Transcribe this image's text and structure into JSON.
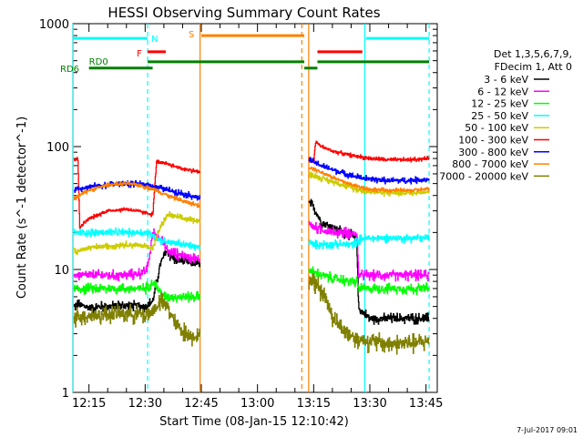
{
  "chart_data": {
    "type": "line",
    "title": "HESSI Observing Summary Count Rates",
    "xlabel": "Start Time (08-Jan-15 12:10:42)",
    "ylabel": "Count Rate (s^-1 detector^-1)",
    "yscale": "log",
    "ylim": [
      1,
      1000
    ],
    "xlim": [
      "12:10:42",
      "13:48:00"
    ],
    "x_ticks": [
      "12:15",
      "12:30",
      "12:45",
      "13:00",
      "13:15",
      "13:30",
      "13:45"
    ],
    "y_ticks": [
      "1",
      "10",
      "100",
      "1000"
    ],
    "legend_header": [
      "Det 1,3,5,6,7,9,",
      "FDecim 1, Att 0"
    ],
    "footer_date": "7-Jul-2017 09:01",
    "flags": [
      {
        "label": "N",
        "color": "#00ffff",
        "level": 760,
        "segments": [
          [
            "12:10:42",
            "12:30:40"
          ],
          [
            "13:29:00",
            "13:45:50"
          ]
        ]
      },
      {
        "label": "F",
        "color": "#ff0000",
        "level": 590,
        "segments": [
          [
            "12:30:40",
            "12:35:30"
          ],
          [
            "13:16:00",
            "13:28:00"
          ]
        ]
      },
      {
        "label": "S",
        "color": "#ff8000",
        "level": 800,
        "segments": [
          [
            "12:45:00",
            "13:12:30"
          ]
        ]
      },
      {
        "label": "RD0",
        "color": "#008000",
        "level": 490,
        "segments": [
          [
            "12:10:42",
            "12:10:46"
          ],
          [
            "12:30:40",
            "13:12:30"
          ],
          [
            "13:16:00",
            "13:45:50"
          ]
        ]
      },
      {
        "label": "RD6",
        "color": "#008000",
        "level": 435,
        "segments": [
          [
            "12:15:00",
            "12:32:00"
          ],
          [
            "13:12:30",
            "13:16:00"
          ]
        ]
      }
    ],
    "vlines": [
      {
        "x": "12:10:45",
        "color": "#00ffff",
        "style": "solid"
      },
      {
        "x": "12:30:40",
        "color": "#00ffff",
        "style": "dashed"
      },
      {
        "x": "12:44:40",
        "color": "#ff8000",
        "style": "solid"
      },
      {
        "x": "13:11:50",
        "color": "#ff8000",
        "style": "dashed"
      },
      {
        "x": "13:13:40",
        "color": "#ff8000",
        "style": "solid"
      },
      {
        "x": "13:28:40",
        "color": "#00ffff",
        "style": "solid"
      },
      {
        "x": "13:45:50",
        "color": "#00ffff",
        "style": "dashed"
      }
    ],
    "intervals": [
      [
        "12:11:00",
        "12:44:40"
      ],
      [
        "13:13:40",
        "13:45:50"
      ]
    ],
    "series": [
      {
        "name": "3 - 6 keV",
        "color": "#000000",
        "noise": 0.05,
        "points": [
          [
            "12:11:00",
            5
          ],
          [
            "12:12:00",
            5.2
          ],
          [
            "12:15:00",
            4.9
          ],
          [
            "12:20:00",
            5
          ],
          [
            "12:25:00",
            5.1
          ],
          [
            "12:30:00",
            5
          ],
          [
            "12:32:00",
            5.5
          ],
          [
            "12:34:00",
            11
          ],
          [
            "12:35:30",
            14
          ],
          [
            "12:38:00",
            12
          ],
          [
            "12:44:40",
            11
          ],
          [
            "13:13:40",
            35
          ],
          [
            "13:15:00",
            32
          ],
          [
            "13:17:00",
            24
          ],
          [
            "13:20:00",
            22
          ],
          [
            "13:23:00",
            20
          ],
          [
            "13:25:00",
            19
          ],
          [
            "13:26:30",
            17
          ],
          [
            "13:27:00",
            4.8
          ],
          [
            "13:30:00",
            4
          ],
          [
            "13:40:00",
            4
          ],
          [
            "13:45:50",
            4
          ]
        ]
      },
      {
        "name": "6 - 12 keV",
        "color": "#ff00ff",
        "noise": 0.05,
        "points": [
          [
            "12:11:00",
            9
          ],
          [
            "12:15:00",
            9
          ],
          [
            "12:20:00",
            9
          ],
          [
            "12:25:00",
            9
          ],
          [
            "12:30:00",
            9.5
          ],
          [
            "12:31:00",
            12
          ],
          [
            "12:32:00",
            20
          ],
          [
            "12:34:00",
            18
          ],
          [
            "12:36:00",
            14
          ],
          [
            "12:40:00",
            13
          ],
          [
            "12:44:40",
            12
          ],
          [
            "13:13:40",
            24
          ],
          [
            "13:15:00",
            22
          ],
          [
            "13:20:00",
            20
          ],
          [
            "13:25:00",
            20
          ],
          [
            "13:26:30",
            19
          ],
          [
            "13:27:00",
            9
          ],
          [
            "13:35:00",
            9
          ],
          [
            "13:45:50",
            9
          ]
        ]
      },
      {
        "name": "12 - 25 keV",
        "color": "#00ff00",
        "noise": 0.05,
        "points": [
          [
            "12:11:00",
            7
          ],
          [
            "12:15:00",
            7
          ],
          [
            "12:20:00",
            7
          ],
          [
            "12:25:00",
            7
          ],
          [
            "12:30:00",
            7
          ],
          [
            "12:32:00",
            8
          ],
          [
            "12:35:00",
            6
          ],
          [
            "12:40:00",
            6
          ],
          [
            "12:44:40",
            6
          ],
          [
            "13:13:40",
            10
          ],
          [
            "13:15:00",
            9.5
          ],
          [
            "13:17:00",
            9
          ],
          [
            "13:20:00",
            8.5
          ],
          [
            "13:25:00",
            8
          ],
          [
            "13:26:30",
            8
          ],
          [
            "13:27:00",
            7
          ],
          [
            "13:35:00",
            7
          ],
          [
            "13:45:50",
            7
          ]
        ]
      },
      {
        "name": "25 - 50 keV",
        "color": "#00ffff",
        "noise": 0.04,
        "points": [
          [
            "12:11:00",
            20
          ],
          [
            "12:15:00",
            20
          ],
          [
            "12:20:00",
            20
          ],
          [
            "12:25:00",
            20
          ],
          [
            "12:30:00",
            20
          ],
          [
            "12:32:00",
            19
          ],
          [
            "12:33:00",
            18
          ],
          [
            "12:35:00",
            17
          ],
          [
            "12:40:00",
            16
          ],
          [
            "12:44:40",
            15
          ],
          [
            "13:13:40",
            17
          ],
          [
            "13:15:00",
            16
          ],
          [
            "13:20:00",
            16
          ],
          [
            "13:25:00",
            16
          ],
          [
            "13:28:00",
            18
          ],
          [
            "13:35:00",
            18
          ],
          [
            "13:45:50",
            18
          ]
        ]
      },
      {
        "name": "50 - 100 keV",
        "color": "#cccc00",
        "noise": 0.03,
        "points": [
          [
            "12:11:00",
            14
          ],
          [
            "12:15:00",
            15
          ],
          [
            "12:20:00",
            15.5
          ],
          [
            "12:25:00",
            16
          ],
          [
            "12:30:00",
            15.5
          ],
          [
            "12:32:00",
            15
          ],
          [
            "12:34:00",
            22
          ],
          [
            "12:36:00",
            28
          ],
          [
            "12:40:00",
            26
          ],
          [
            "12:44:40",
            25
          ],
          [
            "13:13:40",
            60
          ],
          [
            "13:15:00",
            58
          ],
          [
            "13:18:00",
            54
          ],
          [
            "13:22:00",
            50
          ],
          [
            "13:25:00",
            46
          ],
          [
            "13:30:00",
            43
          ],
          [
            "13:35:00",
            42
          ],
          [
            "13:40:00",
            42
          ],
          [
            "13:45:50",
            43
          ]
        ]
      },
      {
        "name": "100 - 300 keV",
        "color": "#ff0000",
        "noise": 0.02,
        "points": [
          [
            "12:11:00",
            80
          ],
          [
            "12:12:00",
            78
          ],
          [
            "12:12:30",
            22
          ],
          [
            "12:15:00",
            26
          ],
          [
            "12:20:00",
            30
          ],
          [
            "12:25:00",
            31
          ],
          [
            "12:30:00",
            29
          ],
          [
            "12:32:00",
            28
          ],
          [
            "12:33:00",
            75
          ],
          [
            "12:36:00",
            72
          ],
          [
            "12:40:00",
            66
          ],
          [
            "12:44:40",
            62
          ],
          [
            "13:13:40",
            80
          ],
          [
            "13:15:00",
            75
          ],
          [
            "13:15:30",
            110
          ],
          [
            "13:17:00",
            100
          ],
          [
            "13:20:00",
            92
          ],
          [
            "13:25:00",
            85
          ],
          [
            "13:30:00",
            80
          ],
          [
            "13:35:00",
            78
          ],
          [
            "13:40:00",
            78
          ],
          [
            "13:45:50",
            80
          ]
        ]
      },
      {
        "name": "300 - 800 keV",
        "color": "#0000ff",
        "noise": 0.03,
        "points": [
          [
            "12:11:00",
            45
          ],
          [
            "12:15:00",
            47
          ],
          [
            "12:20:00",
            49
          ],
          [
            "12:25:00",
            50
          ],
          [
            "12:30:00",
            49
          ],
          [
            "12:32:00",
            48
          ],
          [
            "12:34:00",
            46
          ],
          [
            "12:38:00",
            43
          ],
          [
            "12:42:00",
            40
          ],
          [
            "12:44:40",
            38
          ],
          [
            "13:13:40",
            78
          ],
          [
            "13:15:00",
            75
          ],
          [
            "13:18:00",
            68
          ],
          [
            "13:22:00",
            62
          ],
          [
            "13:26:00",
            57
          ],
          [
            "13:30:00",
            54
          ],
          [
            "13:35:00",
            53
          ],
          [
            "13:40:00",
            53
          ],
          [
            "13:45:50",
            54
          ]
        ]
      },
      {
        "name": "800 - 7000 keV",
        "color": "#ff8000",
        "noise": 0.02,
        "points": [
          [
            "12:11:00",
            38
          ],
          [
            "12:15:00",
            44
          ],
          [
            "12:20:00",
            49
          ],
          [
            "12:25:00",
            50
          ],
          [
            "12:28:00",
            49
          ],
          [
            "12:30:00",
            47
          ],
          [
            "12:33:00",
            44
          ],
          [
            "12:36:00",
            40
          ],
          [
            "12:40:00",
            36
          ],
          [
            "12:44:40",
            33
          ],
          [
            "13:13:40",
            68
          ],
          [
            "13:15:00",
            66
          ],
          [
            "13:18:00",
            60
          ],
          [
            "13:22:00",
            53
          ],
          [
            "13:26:00",
            48
          ],
          [
            "13:30:00",
            45
          ],
          [
            "13:35:00",
            44
          ],
          [
            "13:40:00",
            44
          ],
          [
            "13:45:50",
            45
          ]
        ]
      },
      {
        "name": "7000 - 20000 keV",
        "color": "#808000",
        "noise": 0.09,
        "points": [
          [
            "12:11:00",
            4.2
          ],
          [
            "12:15:00",
            4.2
          ],
          [
            "12:20:00",
            4.3
          ],
          [
            "12:25:00",
            4.4
          ],
          [
            "12:30:00",
            4.3
          ],
          [
            "12:32:00",
            4.6
          ],
          [
            "12:34:00",
            5.5
          ],
          [
            "12:36:00",
            5
          ],
          [
            "12:38:00",
            3.6
          ],
          [
            "12:41:00",
            3
          ],
          [
            "12:44:40",
            2.8
          ],
          [
            "13:13:40",
            8.5
          ],
          [
            "13:16:00",
            7.5
          ],
          [
            "13:18:00",
            6
          ],
          [
            "13:20:00",
            4.2
          ],
          [
            "13:22:00",
            3.4
          ],
          [
            "13:26:00",
            2.8
          ],
          [
            "13:30:00",
            2.6
          ],
          [
            "13:35:00",
            2.5
          ],
          [
            "13:40:00",
            2.5
          ],
          [
            "13:45:50",
            2.6
          ]
        ]
      }
    ]
  }
}
